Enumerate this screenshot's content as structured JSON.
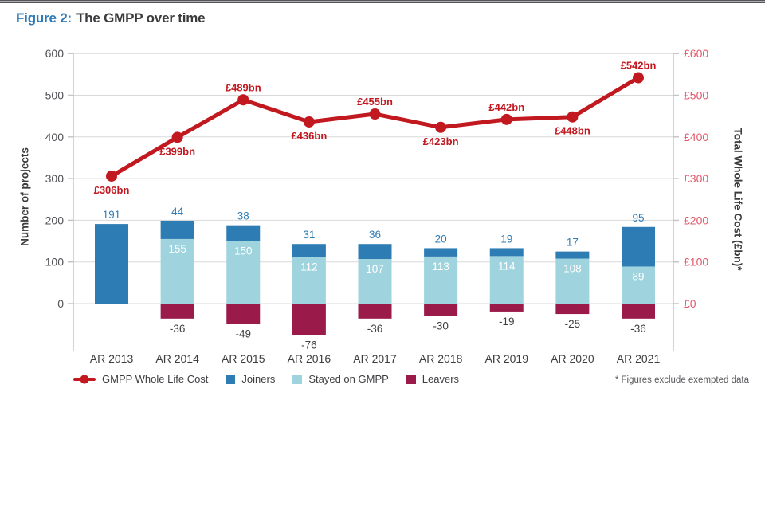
{
  "page": {
    "title_prefix": "Figure 2:",
    "title": "The GMPP over time"
  },
  "chart_data": {
    "type": "combo-bar-line",
    "categories": [
      "AR 2013",
      "AR 2014",
      "AR 2015",
      "AR 2016",
      "AR 2017",
      "AR 2018",
      "AR 2019",
      "AR 2020",
      "AR 2021"
    ],
    "bar_series": [
      {
        "name": "Joiners",
        "color": "#2e7cb4",
        "values": [
          191,
          44,
          38,
          31,
          36,
          20,
          19,
          17,
          95
        ]
      },
      {
        "name": "Stayed on GMPP",
        "color": "#9fd3dd",
        "values": [
          null,
          155,
          150,
          112,
          107,
          113,
          114,
          108,
          89
        ]
      },
      {
        "name": "Leavers",
        "color": "#9a1a4a",
        "values": [
          null,
          -36,
          -49,
          -76,
          -36,
          -30,
          -19,
          -25,
          -36
        ]
      }
    ],
    "line_series": {
      "name": "GMPP Whole Life Cost",
      "color": "#c2181f",
      "values": [
        306,
        399,
        489,
        436,
        455,
        423,
        442,
        448,
        542
      ],
      "point_labels": [
        "£306bn",
        "£399bn",
        "£489bn",
        "£436bn",
        "£455bn",
        "£423bn",
        "£442bn",
        "£448bn",
        "£542bn"
      ],
      "label_positions": [
        "below",
        "below",
        "above",
        "below",
        "above",
        "below",
        "above",
        "below",
        "above"
      ]
    },
    "left_axis": {
      "title": "Number of projects",
      "ticks": [
        0,
        100,
        200,
        300,
        400,
        500,
        600
      ],
      "lim": [
        0,
        600
      ],
      "label_color": "#515156"
    },
    "right_axis": {
      "title": "Total Whole Life Cost (£bn)*",
      "tick_labels": [
        "£0",
        "£100",
        "£200",
        "£300",
        "£400",
        "£500",
        "£600"
      ],
      "label_color": "#e25768"
    },
    "grid": true,
    "legend_position": "bottom"
  },
  "footnote": "* Figures exclude exempted data"
}
